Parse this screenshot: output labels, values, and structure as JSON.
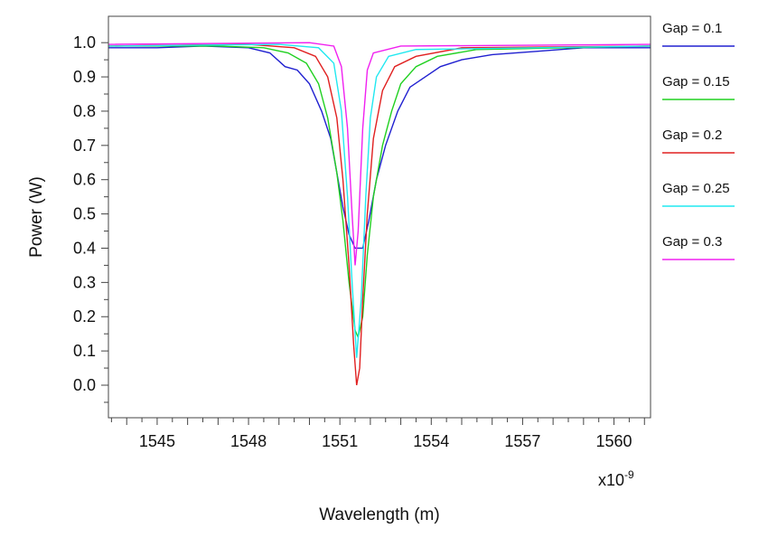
{
  "chart_data": {
    "type": "line",
    "title": "",
    "xlabel": "Wavelength (m)",
    "ylabel": "Power (W)",
    "x_multiplier": "x10",
    "x_multiplier_exp": "-9",
    "xlim": [
      1543.4,
      1561.2
    ],
    "ylim": [
      -0.095,
      1.077
    ],
    "xticks": [
      1545,
      1548,
      1551,
      1554,
      1557,
      1560
    ],
    "yticks": [
      0.0,
      0.1,
      0.2,
      0.3,
      0.4,
      0.5,
      0.6,
      0.7,
      0.8,
      0.9,
      1.0
    ],
    "grid": false,
    "legend_position": "right",
    "series": [
      {
        "name": "Gap = 0.1",
        "color": "#2020d0",
        "points": [
          [
            1543.4,
            0.985
          ],
          [
            1545,
            0.985
          ],
          [
            1546.5,
            0.99
          ],
          [
            1548,
            0.985
          ],
          [
            1548.7,
            0.97
          ],
          [
            1549.2,
            0.93
          ],
          [
            1549.6,
            0.92
          ],
          [
            1550.0,
            0.88
          ],
          [
            1550.4,
            0.8
          ],
          [
            1550.7,
            0.72
          ],
          [
            1550.9,
            0.62
          ],
          [
            1551.1,
            0.52
          ],
          [
            1551.3,
            0.44
          ],
          [
            1551.5,
            0.4
          ],
          [
            1551.75,
            0.4
          ],
          [
            1551.95,
            0.48
          ],
          [
            1552.2,
            0.6
          ],
          [
            1552.5,
            0.7
          ],
          [
            1552.9,
            0.8
          ],
          [
            1553.3,
            0.87
          ],
          [
            1553.8,
            0.9
          ],
          [
            1554.3,
            0.93
          ],
          [
            1555,
            0.95
          ],
          [
            1556,
            0.965
          ],
          [
            1557.5,
            0.975
          ],
          [
            1559,
            0.985
          ],
          [
            1561.2,
            0.985
          ]
        ]
      },
      {
        "name": "Gap = 0.15",
        "color": "#20d020",
        "points": [
          [
            1543.4,
            0.99
          ],
          [
            1547,
            0.99
          ],
          [
            1548.5,
            0.985
          ],
          [
            1549.3,
            0.97
          ],
          [
            1549.9,
            0.94
          ],
          [
            1550.3,
            0.88
          ],
          [
            1550.6,
            0.78
          ],
          [
            1550.9,
            0.62
          ],
          [
            1551.1,
            0.48
          ],
          [
            1551.3,
            0.3
          ],
          [
            1551.5,
            0.16
          ],
          [
            1551.6,
            0.14
          ],
          [
            1551.75,
            0.2
          ],
          [
            1551.9,
            0.38
          ],
          [
            1552.1,
            0.55
          ],
          [
            1552.4,
            0.7
          ],
          [
            1552.7,
            0.8
          ],
          [
            1553.0,
            0.88
          ],
          [
            1553.5,
            0.93
          ],
          [
            1554.2,
            0.96
          ],
          [
            1555.5,
            0.98
          ],
          [
            1561.2,
            0.99
          ]
        ]
      },
      {
        "name": "Gap = 0.2",
        "color": "#e02020",
        "points": [
          [
            1543.4,
            0.99
          ],
          [
            1548,
            0.995
          ],
          [
            1549.5,
            0.985
          ],
          [
            1550.2,
            0.96
          ],
          [
            1550.6,
            0.9
          ],
          [
            1550.9,
            0.78
          ],
          [
            1551.1,
            0.6
          ],
          [
            1551.3,
            0.35
          ],
          [
            1551.45,
            0.12
          ],
          [
            1551.55,
            0.0
          ],
          [
            1551.65,
            0.05
          ],
          [
            1551.75,
            0.25
          ],
          [
            1551.9,
            0.5
          ],
          [
            1552.1,
            0.72
          ],
          [
            1552.4,
            0.86
          ],
          [
            1552.8,
            0.93
          ],
          [
            1553.5,
            0.96
          ],
          [
            1555,
            0.985
          ],
          [
            1561.2,
            0.99
          ]
        ]
      },
      {
        "name": "Gap = 0.25",
        "color": "#20e8f0",
        "points": [
          [
            1543.4,
            0.99
          ],
          [
            1549,
            0.995
          ],
          [
            1550.3,
            0.985
          ],
          [
            1550.8,
            0.94
          ],
          [
            1551.05,
            0.8
          ],
          [
            1551.25,
            0.55
          ],
          [
            1551.4,
            0.3
          ],
          [
            1551.55,
            0.08
          ],
          [
            1551.7,
            0.25
          ],
          [
            1551.85,
            0.55
          ],
          [
            1552.0,
            0.78
          ],
          [
            1552.2,
            0.9
          ],
          [
            1552.6,
            0.96
          ],
          [
            1553.5,
            0.98
          ],
          [
            1561.2,
            0.99
          ]
        ]
      },
      {
        "name": "Gap = 0.3",
        "color": "#f020f0",
        "points": [
          [
            1543.4,
            0.995
          ],
          [
            1550,
            1.0
          ],
          [
            1550.8,
            0.99
          ],
          [
            1551.05,
            0.93
          ],
          [
            1551.25,
            0.75
          ],
          [
            1551.4,
            0.5
          ],
          [
            1551.5,
            0.35
          ],
          [
            1551.6,
            0.45
          ],
          [
            1551.75,
            0.75
          ],
          [
            1551.9,
            0.92
          ],
          [
            1552.1,
            0.97
          ],
          [
            1553,
            0.99
          ],
          [
            1561.2,
            0.995
          ]
        ]
      }
    ]
  }
}
